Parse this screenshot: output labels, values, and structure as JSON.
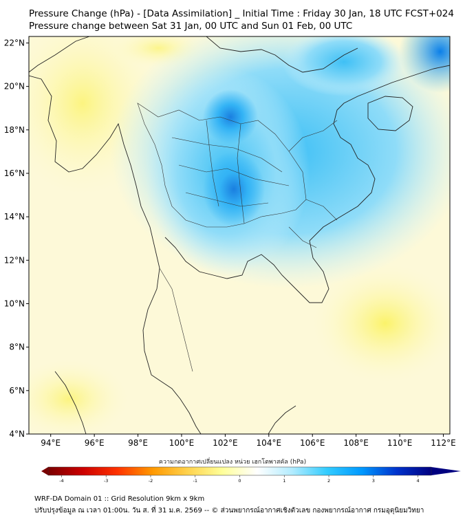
{
  "title": {
    "line1": "Pressure Change (hPa) - [Data Assimilation] _ Initial Time : Friday 30 Jan, 18 UTC FCST+024",
    "line2": "Pressure change between Sat 31 Jan, 00 UTC and Sun 01 Feb, 00 UTC"
  },
  "map": {
    "lon_range": [
      93,
      112.3
    ],
    "lat_range": [
      4,
      22.3
    ],
    "lat_ticks": [
      "22°N",
      "20°N",
      "18°N",
      "16°N",
      "14°N",
      "12°N",
      "10°N",
      "8°N",
      "6°N",
      "4°N"
    ],
    "lat_values": [
      22,
      20,
      18,
      16,
      14,
      12,
      10,
      8,
      6,
      4
    ],
    "lon_ticks": [
      "94°E",
      "96°E",
      "98°E",
      "100°E",
      "102°E",
      "104°E",
      "106°E",
      "108°E",
      "110°E",
      "112°E"
    ],
    "lon_values": [
      94,
      96,
      98,
      100,
      102,
      104,
      106,
      108,
      110,
      112
    ]
  },
  "colorbar": {
    "label": "ความกดอากาศเปลี่ยนแปลง หน่วย เฮกโตพาสคัล (hPa)",
    "ticks": [
      "-4",
      "-3",
      "-2",
      "-1",
      "0",
      "1",
      "2",
      "3",
      "4"
    ],
    "tick_values": [
      -4,
      -3,
      -2,
      -1,
      0,
      1,
      2,
      3,
      4
    ],
    "range": [
      -4.3,
      4.3
    ],
    "colors": [
      "#7a0000",
      "#cc0000",
      "#ff3300",
      "#ff9900",
      "#ffd24d",
      "#ffff99",
      "#ffffff",
      "#b3ecff",
      "#33ccff",
      "#0099ff",
      "#0033cc",
      "#000080"
    ]
  },
  "footer": {
    "line1": "WRF-DA Domain 01 :: Grid Resolution 9km x 9km",
    "line2": "ปรับปรุงข้อมูล ณ เวลา 01:00น. วัน ส. ที่ 31 ม.ค. 2569 -- © ส่วนพยากรณ์อากาศเชิงตัวเลข กองพยากรณ์อากาศ กรมอุตุนิยมวิทยา"
  }
}
